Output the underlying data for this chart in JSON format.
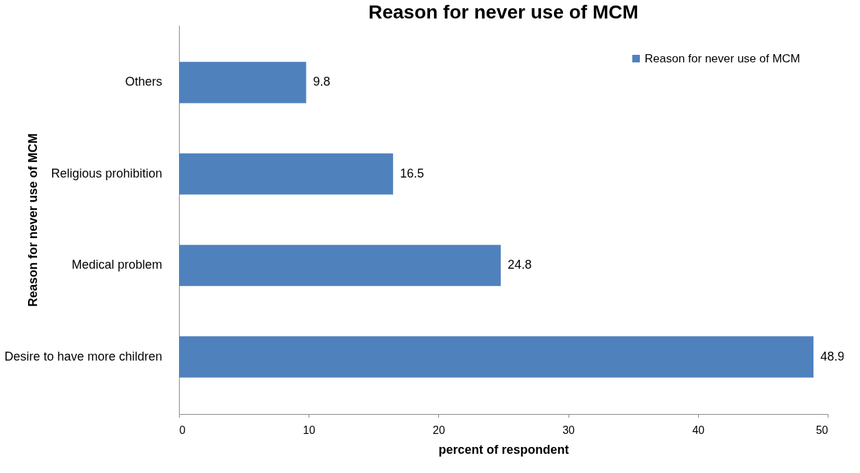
{
  "chart_data": {
    "type": "bar",
    "orientation": "horizontal",
    "title": "Reason for never use of MCM",
    "xlabel": "percent of respondent",
    "ylabel": "Reason for never use of MCM",
    "categories": [
      "Others",
      "Religious prohibition",
      "Medical problem",
      "Desire to have more children"
    ],
    "series": [
      {
        "name": "Reason for never use of MCM",
        "color": "#4f81bd",
        "values": [
          9.8,
          16.5,
          24.8,
          48.9
        ]
      }
    ],
    "xlim": [
      0,
      50
    ],
    "xticks": [
      0,
      10,
      20,
      30,
      40,
      50
    ],
    "data_labels": true,
    "grid": false,
    "legend": "top right"
  }
}
